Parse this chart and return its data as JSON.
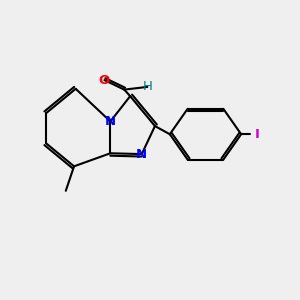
{
  "background_color": "#efefef",
  "bond_color": "#000000",
  "N_color": "#0000ff",
  "O_color": "#ff0000",
  "I_color": "#cc00cc",
  "H_color": "#008080",
  "bond_width": 1.5,
  "figsize": [
    3.0,
    3.0
  ],
  "dpi": 100,
  "xlim": [
    -0.5,
    1.2
  ],
  "ylim": [
    -0.6,
    0.8
  ]
}
